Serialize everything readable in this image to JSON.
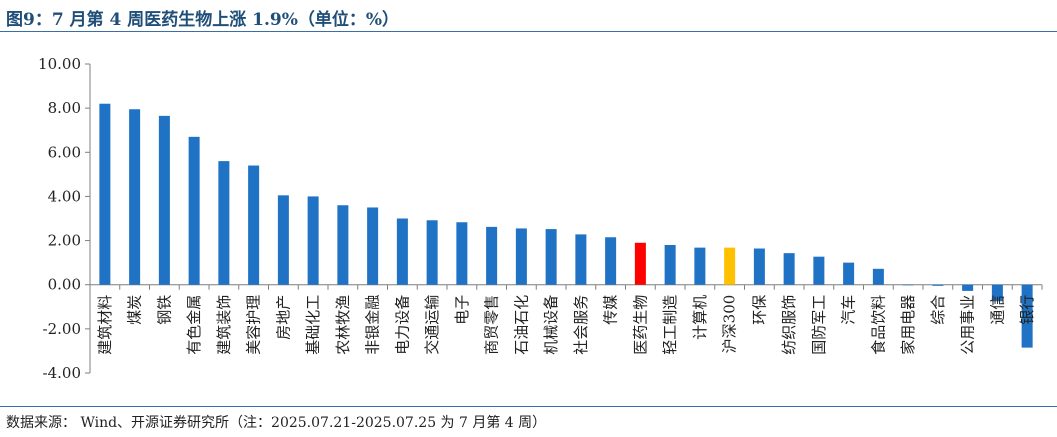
{
  "title": "图9：7 月第 4 周医药生物上涨 1.9%（单位：%）",
  "source": "数据来源：  Wind、开源证券研究所（注：2025.07.21-2025.07.25 为 7 月第 4 周）",
  "colors": {
    "default": "#1f72c4",
    "highlight": "#ff0000",
    "benchmark": "#ffc000"
  },
  "chart_data": {
    "type": "bar",
    "ylim": [
      -4,
      10
    ],
    "yticks": [
      "10.00",
      "8.00",
      "6.00",
      "4.00",
      "2.00",
      "0.00",
      "-2.00",
      "-4.00"
    ],
    "categories": [
      "建筑材料",
      "煤炭",
      "钢铁",
      "有色金属",
      "建筑装饰",
      "美容护理",
      "房地产",
      "基础化工",
      "农林牧渔",
      "非银金融",
      "电力设备",
      "交通运输",
      "电子",
      "商贸零售",
      "石油石化",
      "机械设备",
      "社会服务",
      "传媒",
      "医药生物",
      "轻工制造",
      "计算机",
      "沪深300",
      "环保",
      "纺织服饰",
      "国防军工",
      "汽车",
      "食品饮料",
      "家用电器",
      "综合",
      "公用事业",
      "通信",
      "银行"
    ],
    "values": [
      8.2,
      7.95,
      7.65,
      6.7,
      5.6,
      5.4,
      4.05,
      4.0,
      3.6,
      3.5,
      3.0,
      2.92,
      2.83,
      2.62,
      2.55,
      2.52,
      2.28,
      2.15,
      1.9,
      1.8,
      1.68,
      1.68,
      1.64,
      1.43,
      1.27,
      1.0,
      0.72,
      -0.02,
      -0.05,
      -0.28,
      -0.75,
      -2.85
    ],
    "highlight": "医药生物",
    "benchmark": "沪深300"
  }
}
